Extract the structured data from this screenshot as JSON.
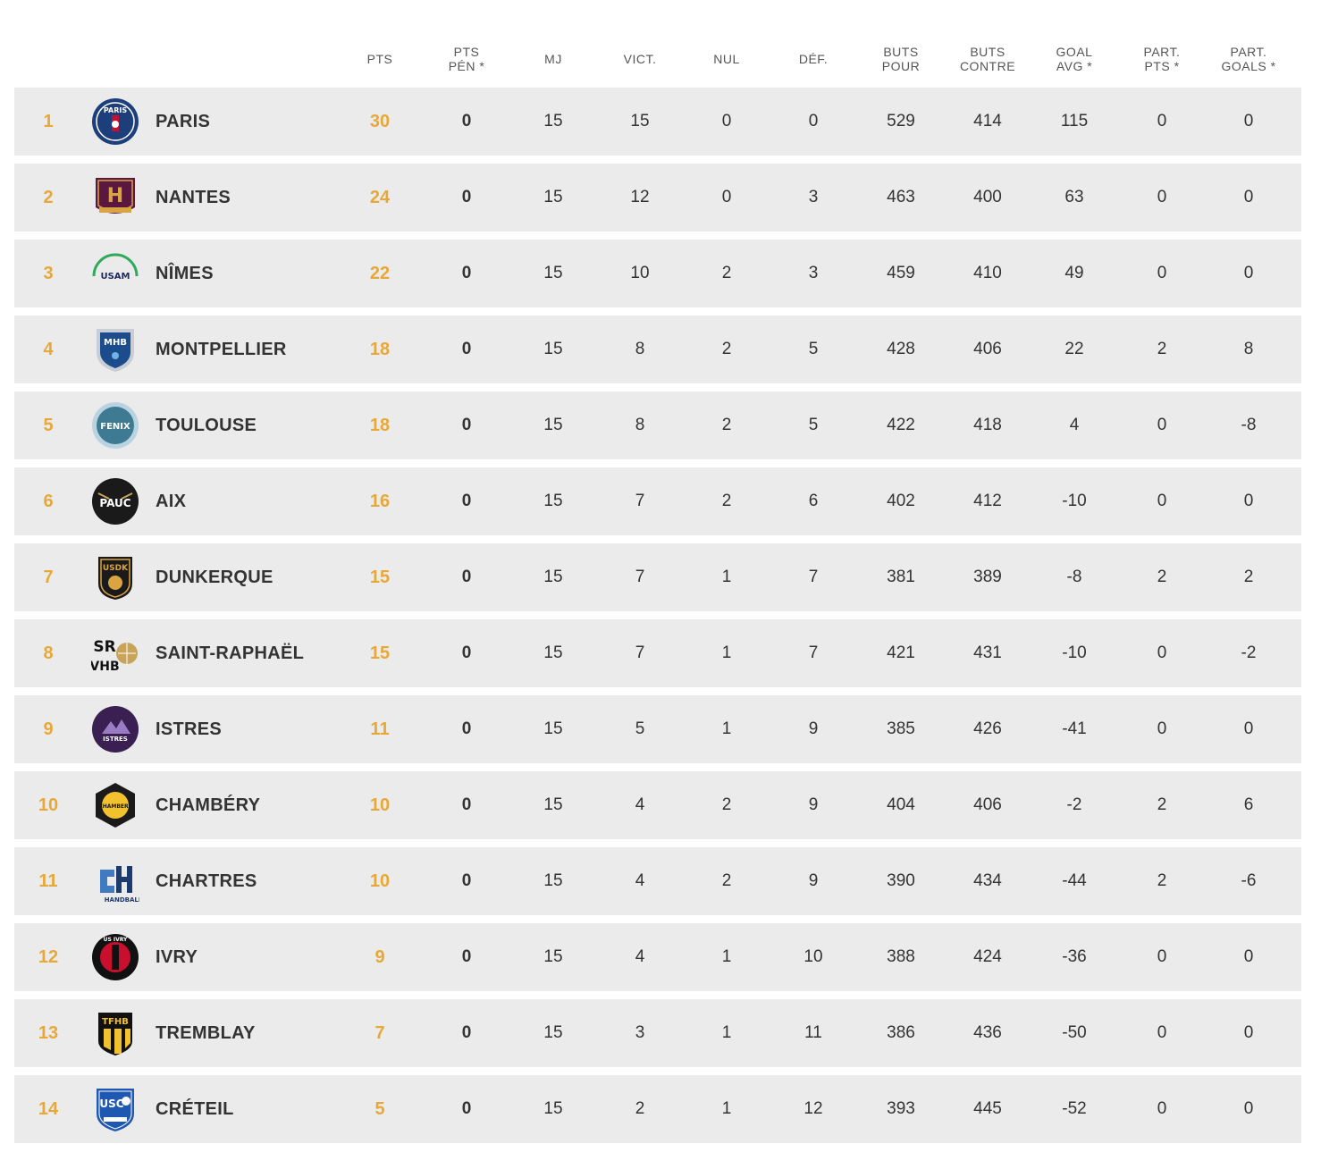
{
  "headers": {
    "pts": "PTS",
    "pts_pen": [
      "PTS",
      "PÉN *"
    ],
    "mj": "MJ",
    "vict": "VICT.",
    "nul": "NUL",
    "def": "DÉF.",
    "buts_pour": [
      "BUTS",
      "POUR"
    ],
    "buts_contre": [
      "BUTS",
      "CONTRE"
    ],
    "goal_avg": [
      "GOAL",
      "AVG *"
    ],
    "part_pts": [
      "PART.",
      "PTS *"
    ],
    "part_goals": [
      "PART.",
      "GOALS *"
    ]
  },
  "accent_color": "#e8a838",
  "rows": [
    {
      "rank": "1",
      "team": "PARIS",
      "logo": "psg-logo",
      "logo_text": "PARIS",
      "pts": "30",
      "pts_pen": "0",
      "mj": "15",
      "vict": "15",
      "nul": "0",
      "def": "0",
      "buts_pour": "529",
      "buts_contre": "414",
      "goal_avg": "115",
      "part_pts": "0",
      "part_goals": "0"
    },
    {
      "rank": "2",
      "team": "NANTES",
      "logo": "hbc-nantes-logo",
      "logo_text": "H",
      "pts": "24",
      "pts_pen": "0",
      "mj": "15",
      "vict": "12",
      "nul": "0",
      "def": "3",
      "buts_pour": "463",
      "buts_contre": "400",
      "goal_avg": "63",
      "part_pts": "0",
      "part_goals": "0"
    },
    {
      "rank": "3",
      "team": "NÎMES",
      "logo": "usam-logo",
      "logo_text": "USAM",
      "pts": "22",
      "pts_pen": "0",
      "mj": "15",
      "vict": "10",
      "nul": "2",
      "def": "3",
      "buts_pour": "459",
      "buts_contre": "410",
      "goal_avg": "49",
      "part_pts": "0",
      "part_goals": "0"
    },
    {
      "rank": "4",
      "team": "MONTPELLIER",
      "logo": "mhb-logo",
      "logo_text": "MHB",
      "pts": "18",
      "pts_pen": "0",
      "mj": "15",
      "vict": "8",
      "nul": "2",
      "def": "5",
      "buts_pour": "428",
      "buts_contre": "406",
      "goal_avg": "22",
      "part_pts": "2",
      "part_goals": "8"
    },
    {
      "rank": "5",
      "team": "TOULOUSE",
      "logo": "fenix-logo",
      "logo_text": "FENIX",
      "pts": "18",
      "pts_pen": "0",
      "mj": "15",
      "vict": "8",
      "nul": "2",
      "def": "5",
      "buts_pour": "422",
      "buts_contre": "418",
      "goal_avg": "4",
      "part_pts": "0",
      "part_goals": "-8"
    },
    {
      "rank": "6",
      "team": "AIX",
      "logo": "pauc-logo",
      "logo_text": "PAUC",
      "pts": "16",
      "pts_pen": "0",
      "mj": "15",
      "vict": "7",
      "nul": "2",
      "def": "6",
      "buts_pour": "402",
      "buts_contre": "412",
      "goal_avg": "-10",
      "part_pts": "0",
      "part_goals": "0"
    },
    {
      "rank": "7",
      "team": "DUNKERQUE",
      "logo": "usdk-logo",
      "logo_text": "USDK",
      "pts": "15",
      "pts_pen": "0",
      "mj": "15",
      "vict": "7",
      "nul": "1",
      "def": "7",
      "buts_pour": "381",
      "buts_contre": "389",
      "goal_avg": "-8",
      "part_pts": "2",
      "part_goals": "2"
    },
    {
      "rank": "8",
      "team": "SAINT-RAPHAËL",
      "logo": "srvhb-logo",
      "logo_text": "SR VHB",
      "pts": "15",
      "pts_pen": "0",
      "mj": "15",
      "vict": "7",
      "nul": "1",
      "def": "7",
      "buts_pour": "421",
      "buts_contre": "431",
      "goal_avg": "-10",
      "part_pts": "0",
      "part_goals": "-2"
    },
    {
      "rank": "9",
      "team": "ISTRES",
      "logo": "istres-logo",
      "logo_text": "ISTRES",
      "pts": "11",
      "pts_pen": "0",
      "mj": "15",
      "vict": "5",
      "nul": "1",
      "def": "9",
      "buts_pour": "385",
      "buts_contre": "426",
      "goal_avg": "-41",
      "part_pts": "0",
      "part_goals": "0"
    },
    {
      "rank": "10",
      "team": "CHAMBÉRY",
      "logo": "chambery-logo",
      "logo_text": "CHAMBERY",
      "pts": "10",
      "pts_pen": "0",
      "mj": "15",
      "vict": "4",
      "nul": "2",
      "def": "9",
      "buts_pour": "404",
      "buts_contre": "406",
      "goal_avg": "-2",
      "part_pts": "2",
      "part_goals": "6"
    },
    {
      "rank": "11",
      "team": "CHARTRES",
      "logo": "chartres-logo",
      "logo_text": "HANDBALL",
      "pts": "10",
      "pts_pen": "0",
      "mj": "15",
      "vict": "4",
      "nul": "2",
      "def": "9",
      "buts_pour": "390",
      "buts_contre": "434",
      "goal_avg": "-44",
      "part_pts": "2",
      "part_goals": "-6"
    },
    {
      "rank": "12",
      "team": "IVRY",
      "logo": "us-ivry-logo",
      "logo_text": "US IVRY",
      "pts": "9",
      "pts_pen": "0",
      "mj": "15",
      "vict": "4",
      "nul": "1",
      "def": "10",
      "buts_pour": "388",
      "buts_contre": "424",
      "goal_avg": "-36",
      "part_pts": "0",
      "part_goals": "0"
    },
    {
      "rank": "13",
      "team": "TREMBLAY",
      "logo": "tfhb-logo",
      "logo_text": "TFHB",
      "pts": "7",
      "pts_pen": "0",
      "mj": "15",
      "vict": "3",
      "nul": "1",
      "def": "11",
      "buts_pour": "386",
      "buts_contre": "436",
      "goal_avg": "-50",
      "part_pts": "0",
      "part_goals": "0"
    },
    {
      "rank": "14",
      "team": "CRÉTEIL",
      "logo": "usc-logo",
      "logo_text": "USC",
      "pts": "5",
      "pts_pen": "0",
      "mj": "15",
      "vict": "2",
      "nul": "1",
      "def": "12",
      "buts_pour": "393",
      "buts_contre": "445",
      "goal_avg": "-52",
      "part_pts": "0",
      "part_goals": "0"
    }
  ]
}
